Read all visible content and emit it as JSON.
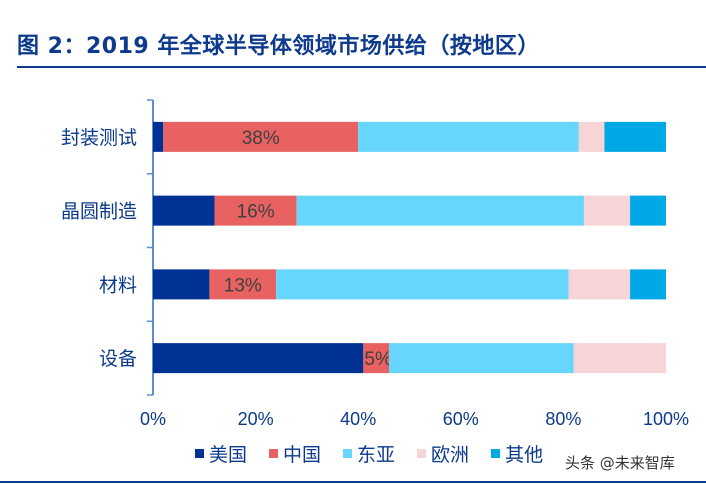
{
  "title": "图 2：2019 年全球半导体领域市场供给（按地区）",
  "watermark": "头条 @未来智库",
  "chart_data": {
    "type": "bar",
    "orientation": "horizontal",
    "stacked": true,
    "title": "图 2：2019 年全球半导体领域市场供给（按地区）",
    "categories": [
      "封装测试",
      "晶圆制造",
      "材料",
      "设备"
    ],
    "series": [
      {
        "name": "美国",
        "color": "#003296",
        "values": [
          2,
          12,
          11,
          41
        ]
      },
      {
        "name": "中国",
        "color": "#e86262",
        "values": [
          38,
          16,
          13,
          5
        ]
      },
      {
        "name": "东亚",
        "color": "#66d6fc",
        "values": [
          43,
          56,
          57,
          36
        ]
      },
      {
        "name": "欧洲",
        "color": "#f7d4d5",
        "values": [
          5,
          9,
          12,
          18
        ]
      },
      {
        "name": "其他",
        "color": "#00a8e6",
        "values": [
          12,
          7,
          7,
          0
        ]
      }
    ],
    "data_labels": {
      "series": "中国",
      "labels": [
        "38%",
        "16%",
        "13%",
        "5%"
      ]
    },
    "xlim": [
      0,
      100
    ],
    "xticks": [
      "0%",
      "20%",
      "40%",
      "60%",
      "80%",
      "100%"
    ],
    "legend_position": "bottom",
    "grid": false
  }
}
